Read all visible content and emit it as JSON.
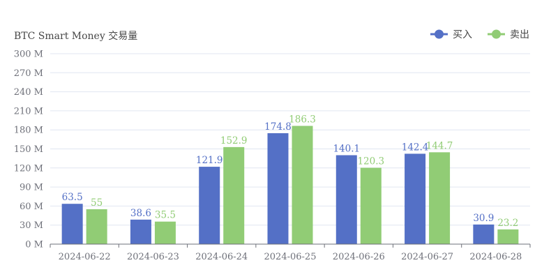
{
  "chart_data": {
    "type": "bar",
    "title": "BTC Smart Money 交易量",
    "categories": [
      "2024-06-22",
      "2024-06-23",
      "2024-06-24",
      "2024-06-25",
      "2024-06-26",
      "2024-06-27",
      "2024-06-28"
    ],
    "series": [
      {
        "name": "买入",
        "color": "#5470c6",
        "values": [
          63.5,
          38.6,
          121.9,
          174.8,
          140.1,
          142.4,
          30.9
        ]
      },
      {
        "name": "卖出",
        "color": "#91cc75",
        "values": [
          55,
          35.5,
          152.9,
          186.3,
          120.3,
          144.7,
          23.2
        ]
      }
    ],
    "ylim": [
      0,
      300
    ],
    "yticks": [
      "0 M",
      "30 M",
      "60 M",
      "90 M",
      "120 M",
      "150 M",
      "180 M",
      "210 M",
      "240 M",
      "270 M",
      "300 M"
    ],
    "ytick_values": [
      0,
      30,
      60,
      90,
      120,
      150,
      180,
      210,
      240,
      270,
      300
    ],
    "grid": true,
    "legend_position": "top-right",
    "xlabel": "",
    "ylabel": ""
  }
}
